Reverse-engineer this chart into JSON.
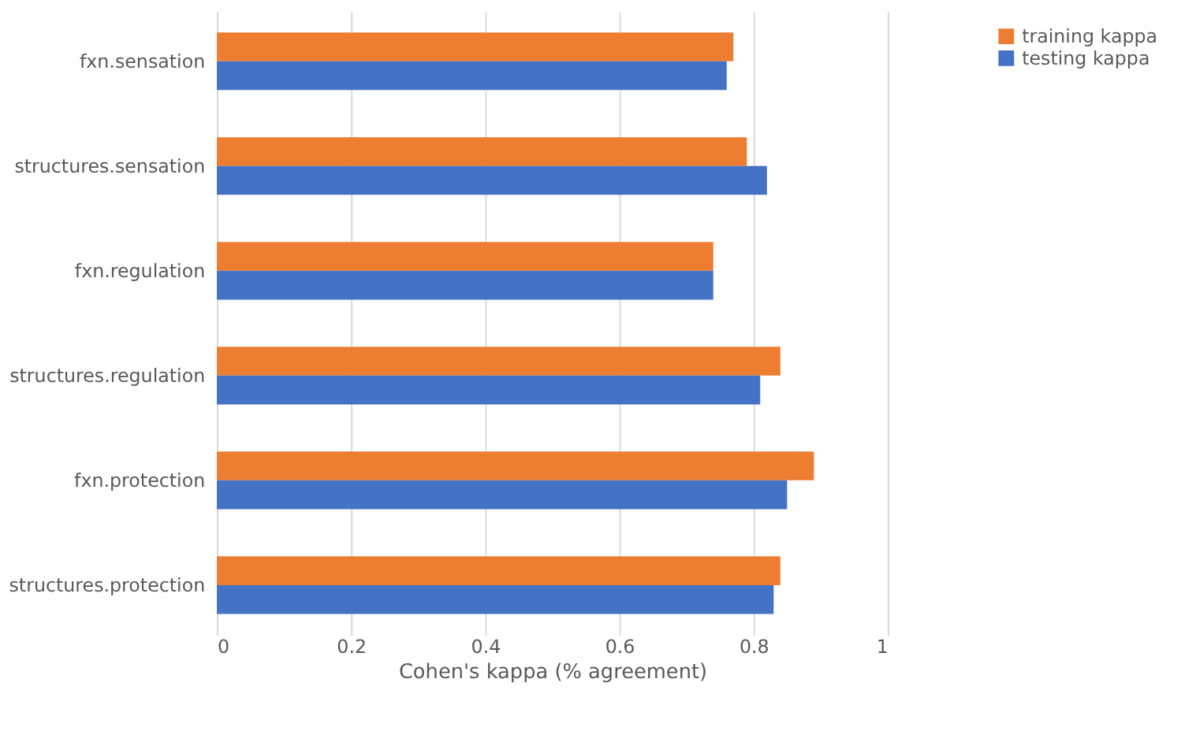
{
  "chart_data": {
    "type": "bar",
    "orientation": "horizontal",
    "categories": [
      "fxn.sensation",
      "structures.sensation",
      "fxn.regulation",
      "structures.regulation",
      "fxn.protection",
      "structures.protection"
    ],
    "series": [
      {
        "name": "training kappa",
        "color": "#ed7d31",
        "values": [
          0.77,
          0.79,
          0.74,
          0.84,
          0.89,
          0.84
        ]
      },
      {
        "name": "testing kappa",
        "color": "#4472c4",
        "values": [
          0.76,
          0.82,
          0.74,
          0.81,
          0.85,
          0.83
        ]
      }
    ],
    "xlabel": "Cohen's kappa (% agreement)",
    "xlim": [
      0,
      1
    ],
    "xticks": [
      0,
      0.2,
      0.4,
      0.6,
      0.8,
      1
    ],
    "grid": "x",
    "legend": "right"
  }
}
